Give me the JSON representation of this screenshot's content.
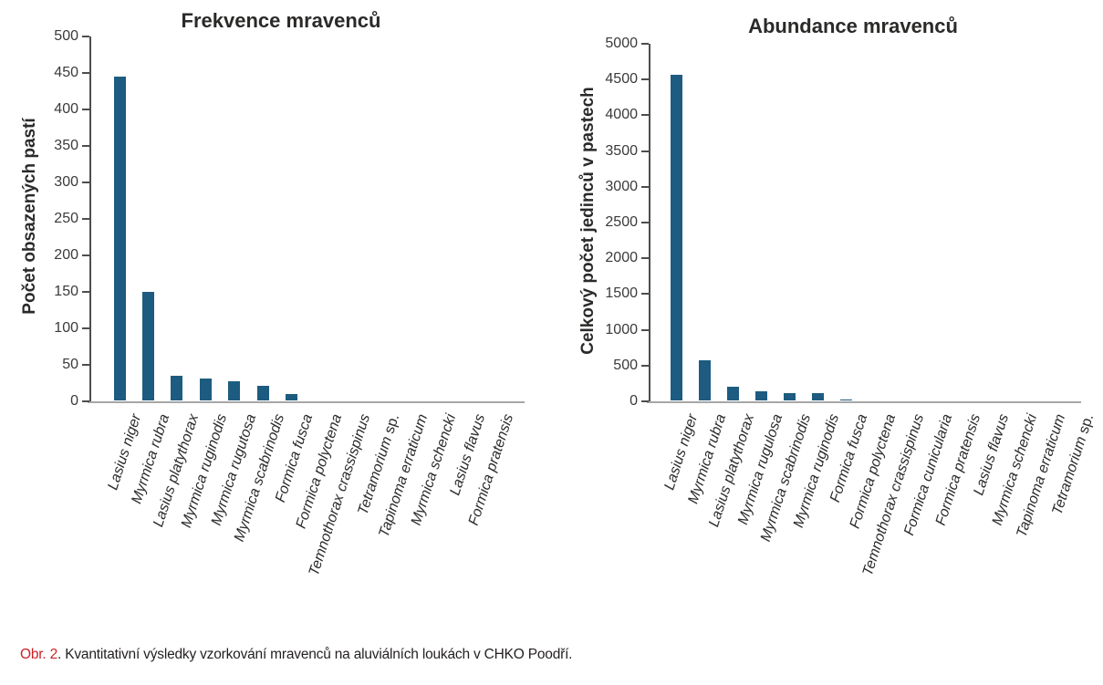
{
  "caption": {
    "label": "Obr. 2",
    "text": ". Kvantitativní výsledky vzorkování mravenců na aluviálních loukách v CHKO Poodří.",
    "label_color": "#cc2127"
  },
  "colors": {
    "bar": "#1d5c80",
    "axis_line": "#a6a6a6",
    "tick_line": "#4d4d4d"
  },
  "chart_data": [
    {
      "type": "bar",
      "title": "Frekvence mravenců",
      "ylabel": "Počet obsazených pastí",
      "xlabel": "",
      "categories": [
        "Lasius niger",
        "Myrmica rubra",
        "Lasius platythorax",
        "Myrmica ruginodis",
        "Myrmica rugutosa",
        "Myrmica scabrinodis",
        "Formica fusca",
        "Formica polyctena",
        "Temnothorax crassispinus",
        "Tetramorium sp.",
        "Tapinoma erraticum",
        "Myrmica schencki",
        "Lasius flavus",
        "Formica pratensis"
      ],
      "values": [
        445,
        150,
        35,
        31,
        28,
        21,
        10,
        0,
        0,
        0,
        0,
        0,
        0,
        0
      ],
      "ylim": [
        0,
        500
      ],
      "ytick_step": 50,
      "grid": false,
      "legend": "none",
      "bar_color": "#1d5c80"
    },
    {
      "type": "bar",
      "title": "Abundance mravenců",
      "ylabel": "Celkový počet jedinců v pastech",
      "xlabel": "",
      "categories": [
        "Lasius niger",
        "Myrmica rubra",
        "Lasius platythorax",
        "Myrmica rugulosa",
        "Myrmica scabrinodis",
        "Myrmica ruginodis",
        "Formica fusca",
        "Formica polyctena",
        "Temnothorax crassispinus",
        "Formica cunicularia",
        "Formica pratensis",
        "Lasius flavus",
        "Myrmica schencki",
        "Tapinoma erraticum",
        "Tetramorium sp."
      ],
      "values": [
        4560,
        580,
        210,
        140,
        110,
        110,
        30,
        0,
        0,
        0,
        0,
        0,
        0,
        0,
        0
      ],
      "ylim": [
        0,
        5000
      ],
      "ytick_step": 500,
      "grid": false,
      "legend": "none",
      "bar_color": "#1d5c80"
    }
  ]
}
